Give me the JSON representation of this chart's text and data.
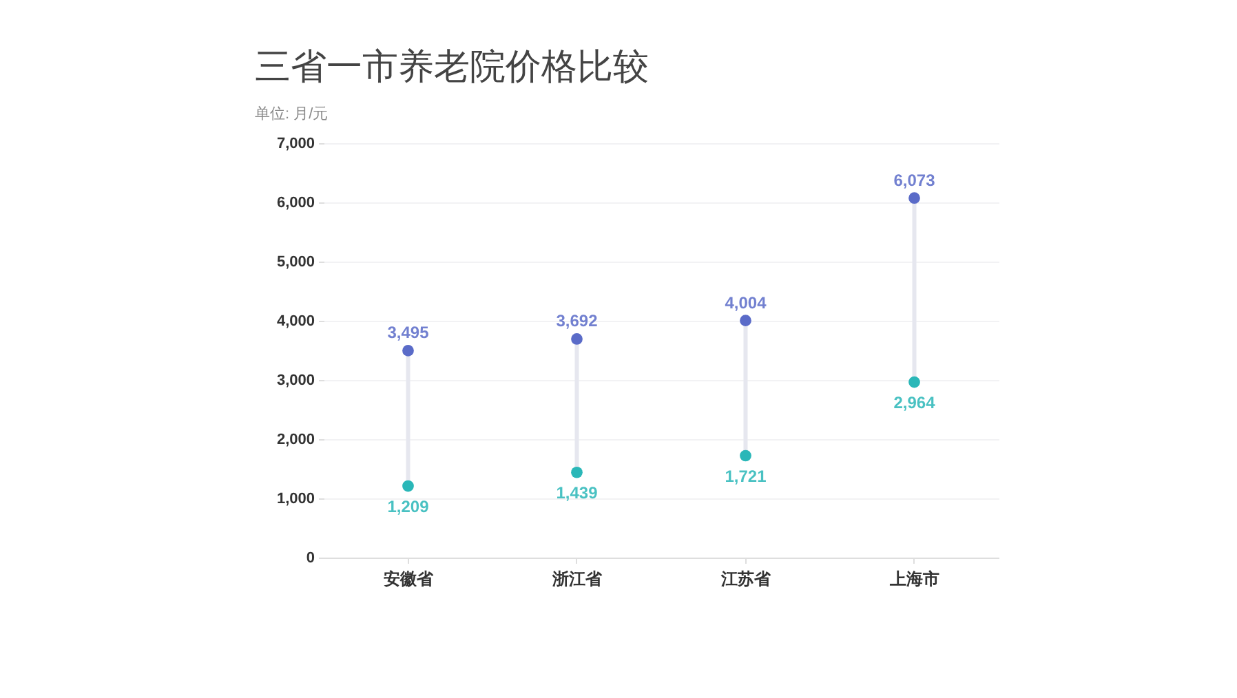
{
  "chart_data": {
    "type": "scatter",
    "title": "三省一市养老院价格比较",
    "subtitle": "单位: 月/元",
    "categories": [
      "安徽省",
      "浙江省",
      "江苏省",
      "上海市"
    ],
    "series": [
      {
        "color": "#5a6bc8",
        "values": [
          3495,
          3692,
          4004,
          6073
        ],
        "value_labels": [
          "3,495",
          "3,692",
          "4,004",
          "6,073"
        ]
      },
      {
        "color": "#2ab7b8",
        "values": [
          1209,
          1439,
          1721,
          2964
        ],
        "value_labels": [
          "1,209",
          "1,439",
          "1,721",
          "2,964"
        ]
      }
    ],
    "ylim": [
      0,
      7000
    ],
    "yticks": [
      0,
      {
        "value": 1000,
        "label": "1,000"
      },
      {
        "value": 2000,
        "label": "2,000"
      },
      {
        "value": 3000,
        "label": "3,000"
      },
      {
        "value": 4000,
        "label": "4,000"
      },
      {
        "value": 5000,
        "label": "5,000"
      },
      {
        "value": 6000,
        "label": "6,000"
      },
      {
        "value": 7000,
        "label": "7,000"
      }
    ],
    "grid": "y",
    "marker": "circle"
  }
}
